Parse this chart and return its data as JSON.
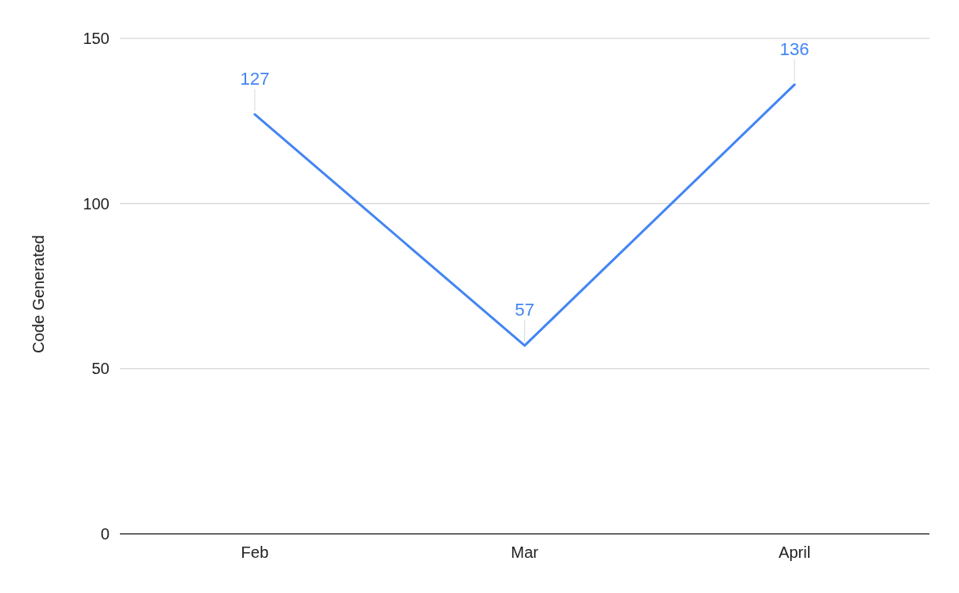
{
  "chart_data": {
    "type": "line",
    "ylabel": "Code Generated",
    "categories": [
      "Feb",
      "Mar",
      "April"
    ],
    "series": [
      {
        "color": "#4285f4",
        "values": [
          127,
          57,
          136
        ]
      }
    ],
    "ylim": [
      0,
      150
    ],
    "yticks": [
      0,
      50,
      100,
      150
    ],
    "grid": "y",
    "data_labels": true,
    "marker": "none",
    "line_style": "solid"
  }
}
